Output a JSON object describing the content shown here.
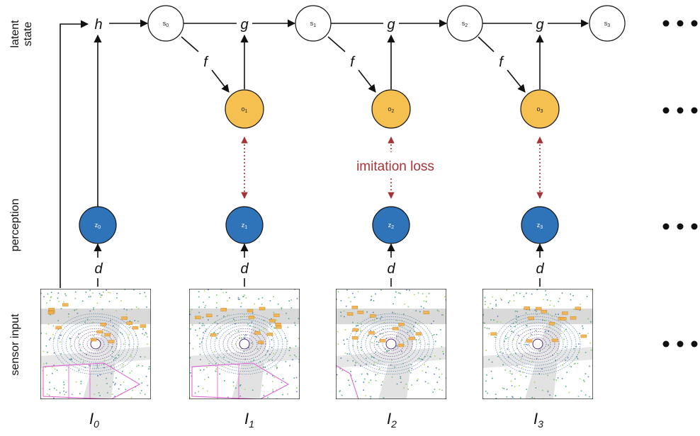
{
  "rows": {
    "latent_line1": "latent",
    "latent_line2": "state",
    "perception": "perception",
    "sensor": "sensor input"
  },
  "functions": {
    "h": "h",
    "g": "g",
    "f": "f",
    "d": "d"
  },
  "states": [
    {
      "base": "s",
      "sub": "0"
    },
    {
      "base": "s",
      "sub": "1"
    },
    {
      "base": "s",
      "sub": "2"
    },
    {
      "base": "s",
      "sub": "3"
    }
  ],
  "outputs": [
    {
      "base": "o",
      "sub": "1"
    },
    {
      "base": "o",
      "sub": "2"
    },
    {
      "base": "o",
      "sub": "3"
    }
  ],
  "perceptions": [
    {
      "base": "z",
      "sub": "0"
    },
    {
      "base": "z",
      "sub": "1"
    },
    {
      "base": "z",
      "sub": "2"
    },
    {
      "base": "z",
      "sub": "3"
    }
  ],
  "inputs": [
    {
      "base": "I",
      "sub": "0"
    },
    {
      "base": "I",
      "sub": "1"
    },
    {
      "base": "I",
      "sub": "2"
    },
    {
      "base": "I",
      "sub": "3"
    }
  ],
  "loss_label": "imitation loss",
  "colors": {
    "state_fill": "#ffffff",
    "output_fill": "#f5c04f",
    "perception_fill": "#2f73b8",
    "loss_color": "#a4343a"
  }
}
